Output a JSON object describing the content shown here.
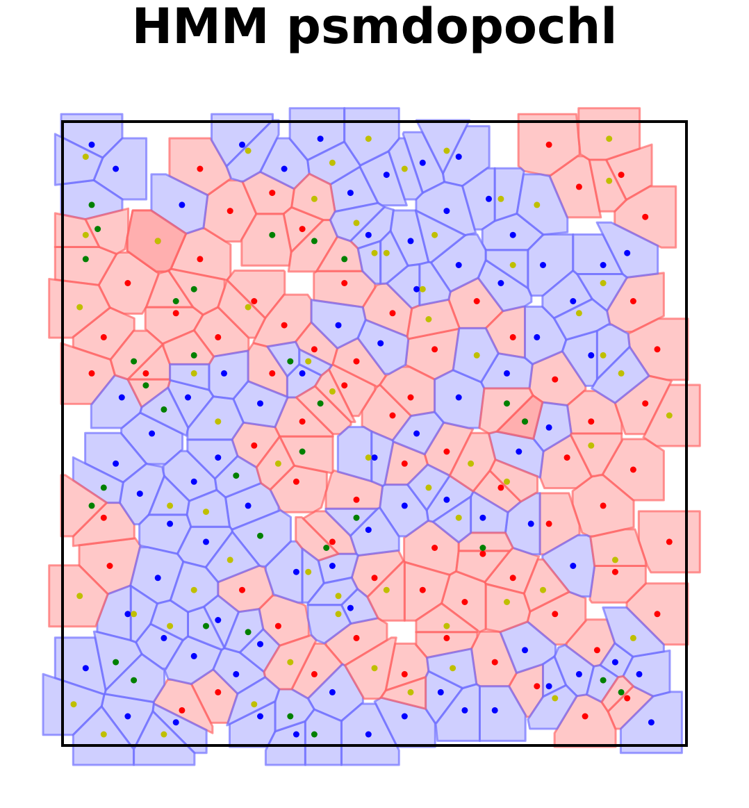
{
  "chart_data": {
    "type": "scatter",
    "title": "HMM psmdopochl",
    "subtitle": "",
    "xlabel": "",
    "ylabel": "",
    "description_kind": "voronoi tessellation with point labels",
    "xlim": [
      0,
      1
    ],
    "ylim": [
      0,
      1
    ],
    "grid": false,
    "legend": null,
    "colors": {
      "region_red_fill": "#ff9a9a",
      "region_red_edge": "#ff5f5f",
      "region_blue_fill": "#a8a8ff",
      "region_blue_edge": "#6a6aff",
      "point_red": "#ff0000",
      "point_blue": "#0000ff",
      "point_green": "#008000",
      "point_yellow": "#bfbf00",
      "frame": "#000000"
    },
    "series": [
      {
        "name": "red",
        "region": "red",
        "points": [
          [
            0.09,
            0.75
          ],
          [
            0.14,
            0.82
          ],
          [
            0.21,
            0.79
          ],
          [
            0.26,
            0.87
          ],
          [
            0.3,
            0.72
          ],
          [
            0.35,
            0.68
          ],
          [
            0.21,
            0.94
          ],
          [
            0.33,
            0.9
          ],
          [
            0.38,
            0.84
          ],
          [
            0.45,
            0.75
          ],
          [
            0.53,
            0.7
          ],
          [
            0.6,
            0.64
          ],
          [
            0.67,
            0.72
          ],
          [
            0.73,
            0.66
          ],
          [
            0.8,
            0.59
          ],
          [
            0.86,
            0.52
          ],
          [
            0.93,
            0.44
          ],
          [
            0.88,
            0.38
          ],
          [
            0.79,
            0.35
          ],
          [
            0.71,
            0.41
          ],
          [
            0.62,
            0.47
          ],
          [
            0.53,
            0.53
          ],
          [
            0.45,
            0.58
          ],
          [
            0.38,
            0.52
          ],
          [
            0.3,
            0.48
          ],
          [
            0.37,
            0.42
          ],
          [
            0.47,
            0.39
          ],
          [
            0.55,
            0.45
          ],
          [
            0.6,
            0.31
          ],
          [
            0.65,
            0.22
          ],
          [
            0.73,
            0.26
          ],
          [
            0.8,
            0.2
          ],
          [
            0.87,
            0.14
          ],
          [
            0.92,
            0.06
          ],
          [
            0.85,
            0.03
          ],
          [
            0.77,
            0.08
          ],
          [
            0.7,
            0.12
          ],
          [
            0.62,
            0.16
          ],
          [
            0.55,
            0.1
          ],
          [
            0.47,
            0.16
          ],
          [
            0.4,
            0.1
          ],
          [
            0.34,
            0.18
          ],
          [
            0.28,
            0.24
          ],
          [
            0.24,
            0.07
          ],
          [
            0.18,
            0.04
          ],
          [
            0.91,
            0.93
          ],
          [
            0.95,
            0.86
          ],
          [
            0.84,
            0.91
          ],
          [
            0.79,
            0.98
          ],
          [
            0.93,
            0.72
          ],
          [
            0.97,
            0.64
          ],
          [
            0.95,
            0.55
          ],
          [
            0.05,
            0.66
          ],
          [
            0.03,
            0.6
          ],
          [
            0.06,
            0.28
          ],
          [
            0.05,
            0.36
          ],
          [
            0.97,
            0.2
          ],
          [
            0.99,
            0.32
          ],
          [
            0.12,
            0.6
          ],
          [
            0.17,
            0.7
          ],
          [
            0.24,
            0.66
          ],
          [
            0.43,
            0.32
          ],
          [
            0.5,
            0.26
          ],
          [
            0.58,
            0.24
          ],
          [
            0.68,
            0.3
          ],
          [
            0.75,
            0.52
          ],
          [
            0.82,
            0.46
          ],
          [
            0.9,
            0.27
          ],
          [
            0.33,
            0.6
          ],
          [
            0.4,
            0.64
          ],
          [
            0.47,
            0.62
          ],
          [
            0.56,
            0.56
          ]
        ]
      },
      {
        "name": "blue",
        "region": "blue",
        "points": [
          [
            0.03,
            0.98
          ],
          [
            0.07,
            0.94
          ],
          [
            0.18,
            0.88
          ],
          [
            0.28,
            0.98
          ],
          [
            0.35,
            0.94
          ],
          [
            0.41,
            0.99
          ],
          [
            0.46,
            0.9
          ],
          [
            0.52,
            0.93
          ],
          [
            0.58,
            0.95
          ],
          [
            0.64,
            0.96
          ],
          [
            0.49,
            0.83
          ],
          [
            0.56,
            0.82
          ],
          [
            0.62,
            0.87
          ],
          [
            0.69,
            0.89
          ],
          [
            0.73,
            0.83
          ],
          [
            0.78,
            0.78
          ],
          [
            0.71,
            0.75
          ],
          [
            0.64,
            0.78
          ],
          [
            0.57,
            0.74
          ],
          [
            0.51,
            0.65
          ],
          [
            0.44,
            0.68
          ],
          [
            0.38,
            0.6
          ],
          [
            0.31,
            0.55
          ],
          [
            0.25,
            0.6
          ],
          [
            0.19,
            0.56
          ],
          [
            0.13,
            0.5
          ],
          [
            0.08,
            0.56
          ],
          [
            0.07,
            0.45
          ],
          [
            0.11,
            0.4
          ],
          [
            0.16,
            0.35
          ],
          [
            0.2,
            0.42
          ],
          [
            0.24,
            0.46
          ],
          [
            0.29,
            0.38
          ],
          [
            0.22,
            0.32
          ],
          [
            0.14,
            0.26
          ],
          [
            0.09,
            0.2
          ],
          [
            0.15,
            0.16
          ],
          [
            0.2,
            0.13
          ],
          [
            0.27,
            0.1
          ],
          [
            0.31,
            0.03
          ],
          [
            0.37,
            0.0
          ],
          [
            0.43,
            0.07
          ],
          [
            0.49,
            0.0
          ],
          [
            0.55,
            0.03
          ],
          [
            0.61,
            0.07
          ],
          [
            0.65,
            0.04
          ],
          [
            0.7,
            0.04
          ],
          [
            0.75,
            0.14
          ],
          [
            0.79,
            0.08
          ],
          [
            0.84,
            0.1
          ],
          [
            0.9,
            0.12
          ],
          [
            0.94,
            0.1
          ],
          [
            0.96,
            0.02
          ],
          [
            0.83,
            0.28
          ],
          [
            0.76,
            0.35
          ],
          [
            0.68,
            0.36
          ],
          [
            0.62,
            0.39
          ],
          [
            0.55,
            0.38
          ],
          [
            0.49,
            0.34
          ],
          [
            0.43,
            0.28
          ],
          [
            0.37,
            0.27
          ],
          [
            0.5,
            0.46
          ],
          [
            0.57,
            0.5
          ],
          [
            0.64,
            0.56
          ],
          [
            0.72,
            0.6
          ],
          [
            0.77,
            0.66
          ],
          [
            0.83,
            0.72
          ],
          [
            0.88,
            0.78
          ],
          [
            0.92,
            0.8
          ],
          [
            0.86,
            0.63
          ],
          [
            0.79,
            0.51
          ],
          [
            0.74,
            0.47
          ],
          [
            0.02,
            0.11
          ],
          [
            0.09,
            0.03
          ],
          [
            0.17,
            0.02
          ],
          [
            0.24,
            0.19
          ],
          [
            0.31,
            0.15
          ],
          [
            0.46,
            0.21
          ]
        ]
      },
      {
        "name": "green",
        "region": "mixed",
        "points": [
          [
            0.03,
            0.88
          ],
          [
            0.02,
            0.79
          ],
          [
            0.04,
            0.84
          ],
          [
            0.1,
            0.62
          ],
          [
            0.12,
            0.58
          ],
          [
            0.15,
            0.54
          ],
          [
            0.2,
            0.63
          ],
          [
            0.33,
            0.83
          ],
          [
            0.4,
            0.82
          ],
          [
            0.45,
            0.79
          ],
          [
            0.36,
            0.62
          ],
          [
            0.41,
            0.55
          ],
          [
            0.38,
            0.47
          ],
          [
            0.27,
            0.43
          ],
          [
            0.31,
            0.33
          ],
          [
            0.42,
            0.31
          ],
          [
            0.47,
            0.36
          ],
          [
            0.68,
            0.31
          ],
          [
            0.75,
            0.52
          ],
          [
            0.72,
            0.55
          ],
          [
            0.05,
            0.41
          ],
          [
            0.03,
            0.38
          ],
          [
            0.07,
            0.12
          ],
          [
            0.1,
            0.09
          ],
          [
            0.22,
            0.18
          ],
          [
            0.29,
            0.17
          ],
          [
            0.36,
            0.03
          ],
          [
            0.4,
            0.0
          ],
          [
            0.88,
            0.09
          ],
          [
            0.91,
            0.07
          ],
          [
            0.17,
            0.72
          ],
          [
            0.2,
            0.74
          ]
        ]
      },
      {
        "name": "yellow",
        "region": "mixed",
        "points": [
          [
            0.29,
            0.97
          ],
          [
            0.43,
            0.95
          ],
          [
            0.49,
            0.99
          ],
          [
            0.55,
            0.94
          ],
          [
            0.62,
            0.97
          ],
          [
            0.71,
            0.89
          ],
          [
            0.77,
            0.88
          ],
          [
            0.89,
            0.99
          ],
          [
            0.89,
            0.92
          ],
          [
            0.14,
            0.82
          ],
          [
            0.4,
            0.89
          ],
          [
            0.47,
            0.85
          ],
          [
            0.6,
            0.83
          ],
          [
            0.73,
            0.78
          ],
          [
            0.88,
            0.75
          ],
          [
            0.84,
            0.7
          ],
          [
            0.88,
            0.63
          ],
          [
            0.91,
            0.6
          ],
          [
            0.02,
            0.83
          ],
          [
            0.01,
            0.71
          ],
          [
            0.29,
            0.71
          ],
          [
            0.5,
            0.8
          ],
          [
            0.59,
            0.69
          ],
          [
            0.67,
            0.63
          ],
          [
            0.2,
            0.6
          ],
          [
            0.24,
            0.52
          ],
          [
            0.39,
            0.62
          ],
          [
            0.43,
            0.57
          ],
          [
            0.34,
            0.45
          ],
          [
            0.49,
            0.46
          ],
          [
            0.59,
            0.41
          ],
          [
            0.64,
            0.36
          ],
          [
            0.72,
            0.42
          ],
          [
            0.86,
            0.48
          ],
          [
            0.99,
            0.53
          ],
          [
            0.16,
            0.38
          ],
          [
            0.22,
            0.37
          ],
          [
            0.26,
            0.29
          ],
          [
            0.39,
            0.27
          ],
          [
            0.44,
            0.23
          ],
          [
            0.52,
            0.24
          ],
          [
            0.62,
            0.18
          ],
          [
            0.72,
            0.22
          ],
          [
            0.78,
            0.24
          ],
          [
            0.9,
            0.29
          ],
          [
            0.01,
            0.23
          ],
          [
            0.1,
            0.2
          ],
          [
            0.16,
            0.18
          ],
          [
            0.2,
            0.24
          ],
          [
            0.36,
            0.12
          ],
          [
            0.44,
            0.2
          ],
          [
            0.5,
            0.11
          ],
          [
            0.56,
            0.07
          ],
          [
            0.63,
            0.11
          ],
          [
            0.8,
            0.06
          ],
          [
            0.93,
            0.16
          ],
          [
            0.0,
            0.05
          ],
          [
            0.05,
            0.0
          ],
          [
            0.15,
            0.0
          ],
          [
            0.3,
            0.05
          ],
          [
            0.02,
            0.96
          ],
          [
            0.52,
            0.8
          ],
          [
            0.66,
            0.45
          ],
          [
            0.58,
            0.74
          ]
        ]
      }
    ]
  }
}
